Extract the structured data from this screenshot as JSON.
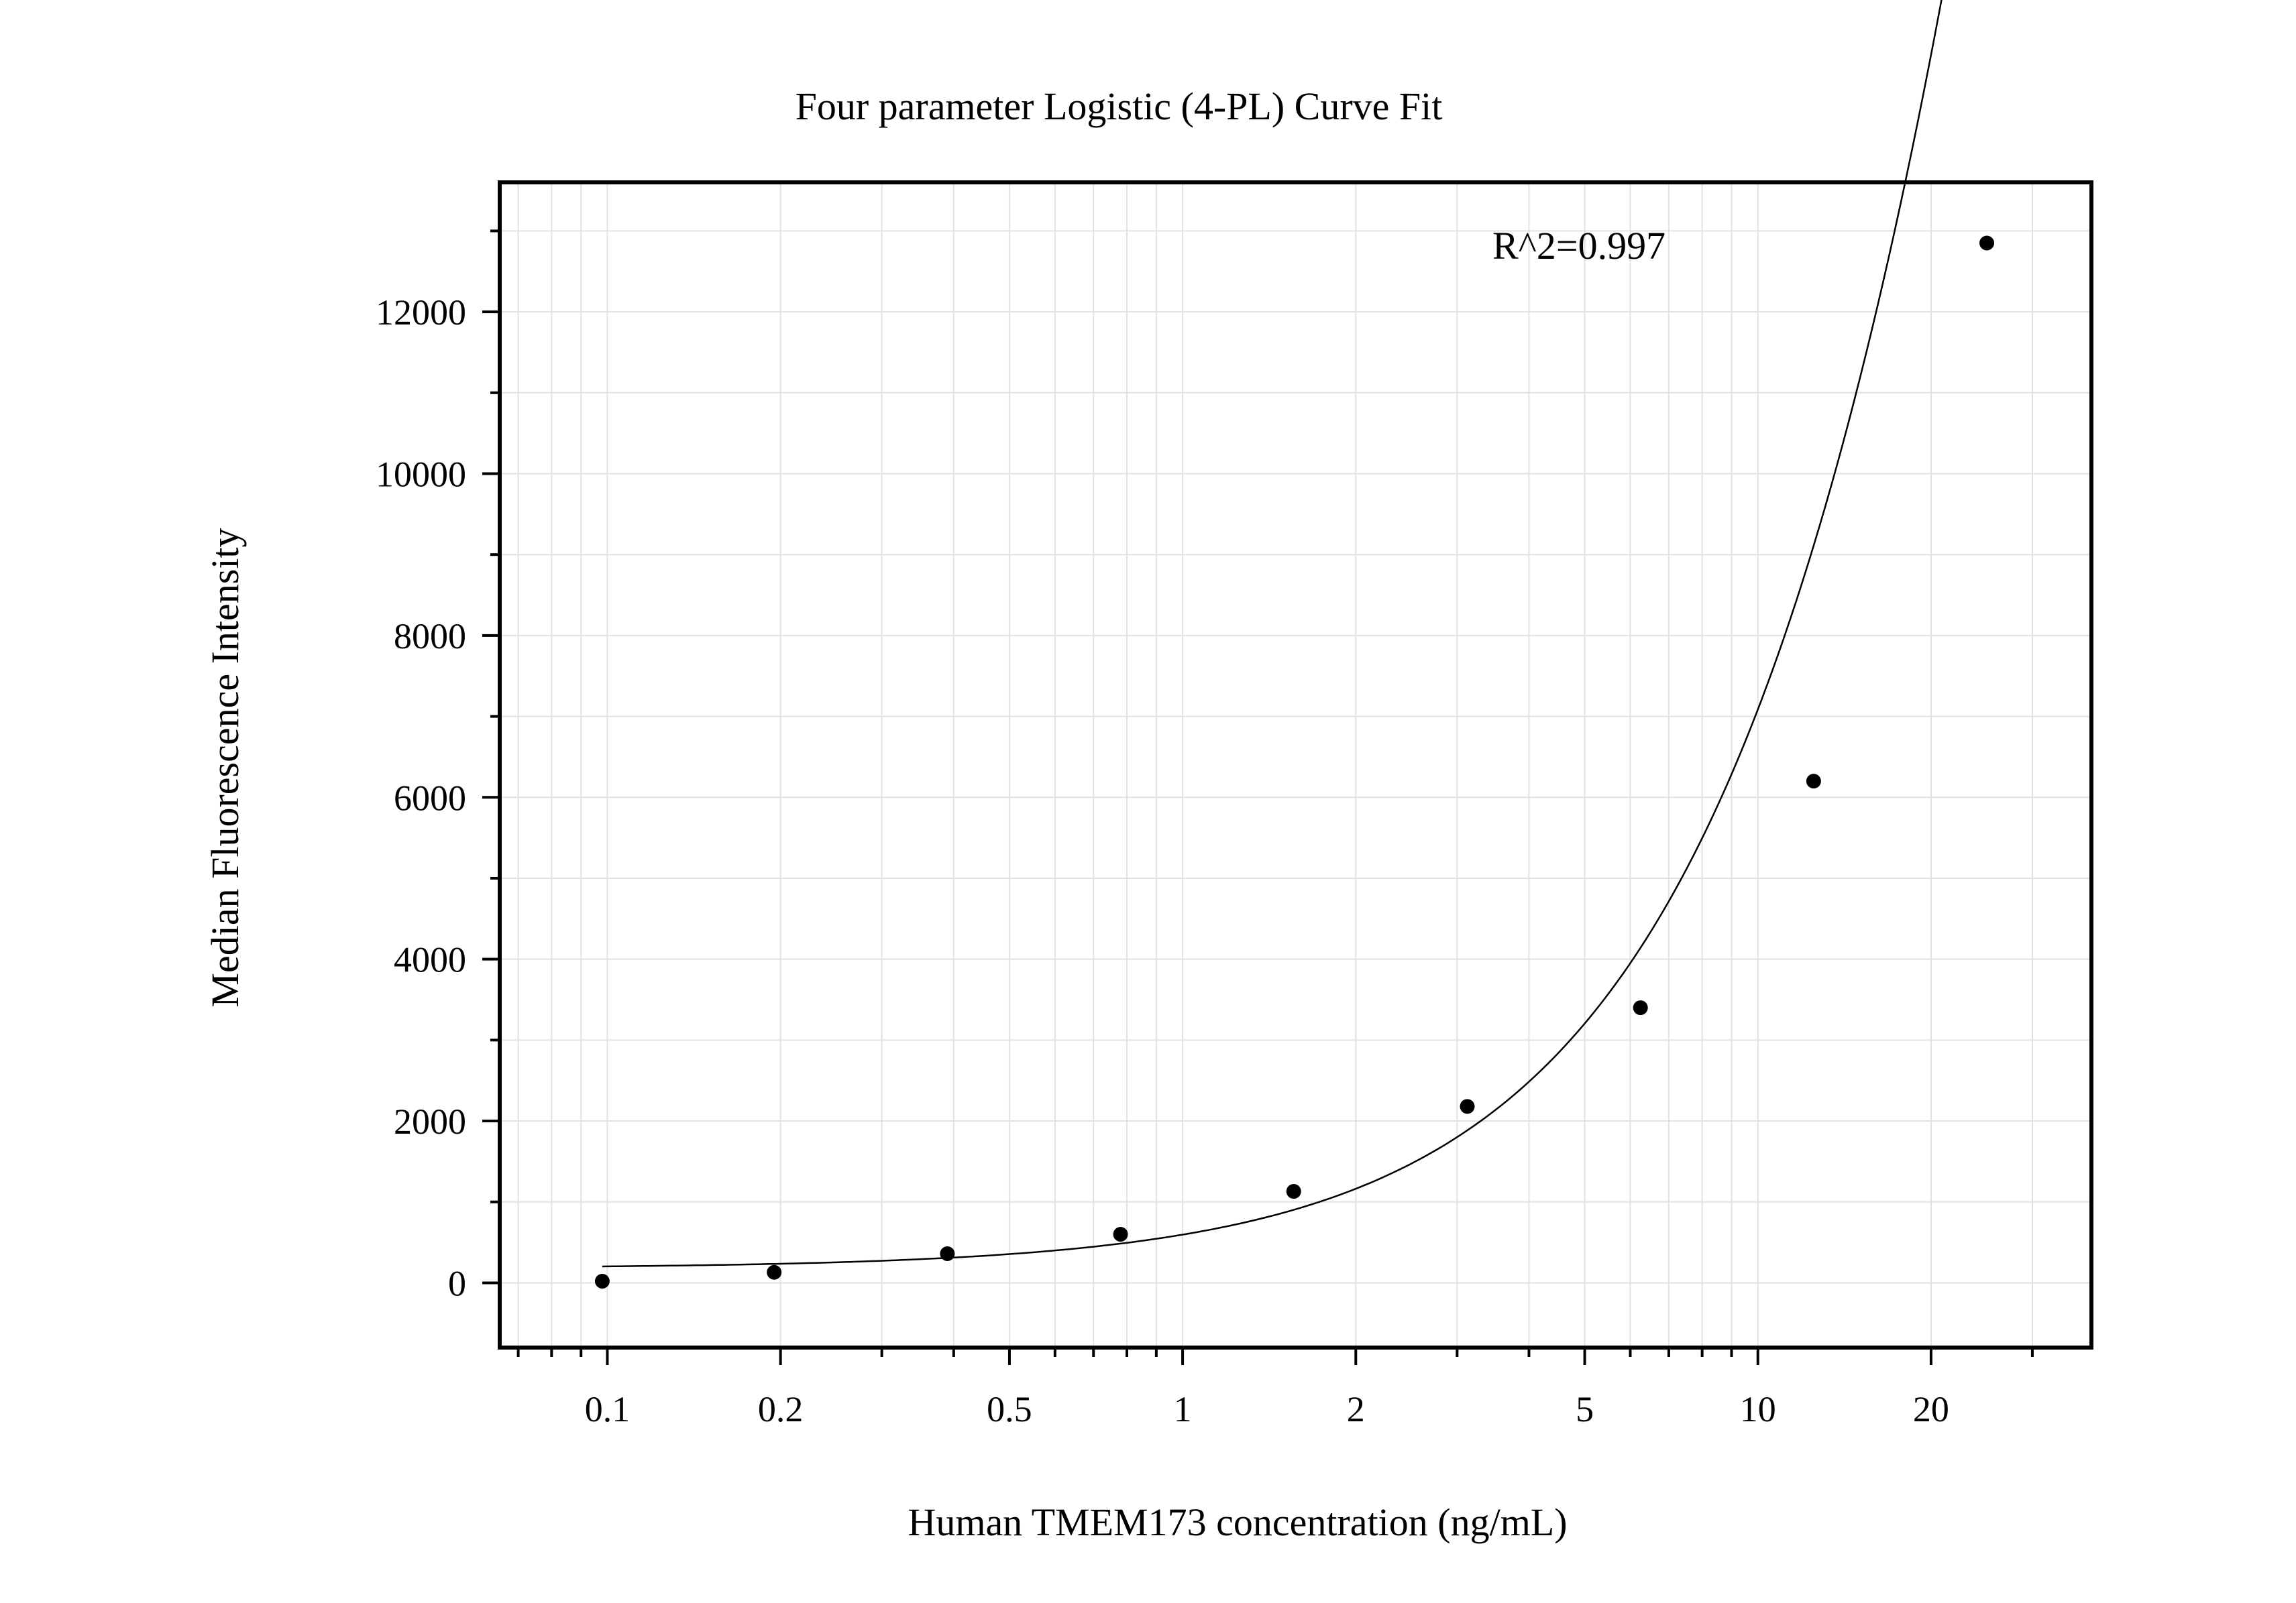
{
  "chart_data": {
    "type": "scatter",
    "title": "Four parameter Logistic (4-PL) Curve Fit",
    "xlabel": "Human TMEM173 concentration (ng/mL)",
    "ylabel": "Median Fluorescence Intensity",
    "x_scale": "log",
    "xlim": [
      0.065,
      38
    ],
    "ylim": [
      -800,
      13600
    ],
    "x_ticks": [
      0.1,
      0.2,
      0.5,
      1,
      2,
      5,
      10,
      20
    ],
    "x_tick_labels": [
      "0.1",
      "0.2",
      "0.5",
      "1",
      "2",
      "5",
      "10",
      "20"
    ],
    "y_ticks": [
      0,
      2000,
      4000,
      6000,
      8000,
      10000,
      12000
    ],
    "y_tick_labels": [
      "0",
      "2000",
      "4000",
      "6000",
      "8000",
      "10000",
      "12000"
    ],
    "grid": true,
    "annotation": "R^2=0.997",
    "series": [
      {
        "type": "scatter",
        "x": [
          0.098,
          0.195,
          0.39,
          0.78,
          1.56,
          3.125,
          6.25,
          12.5,
          25
        ],
        "y": [
          20,
          130,
          360,
          600,
          1130,
          2180,
          3400,
          6200,
          12850
        ]
      }
    ],
    "fit_curve": {
      "model": "4PL",
      "a": 180,
      "b": 1.25,
      "c": 80,
      "d": 100000,
      "x_range": [
        0.098,
        25
      ]
    },
    "colors": {
      "points": "#000000",
      "curve": "#000000",
      "grid": "#e2e2e2",
      "axis": "#000000"
    }
  }
}
